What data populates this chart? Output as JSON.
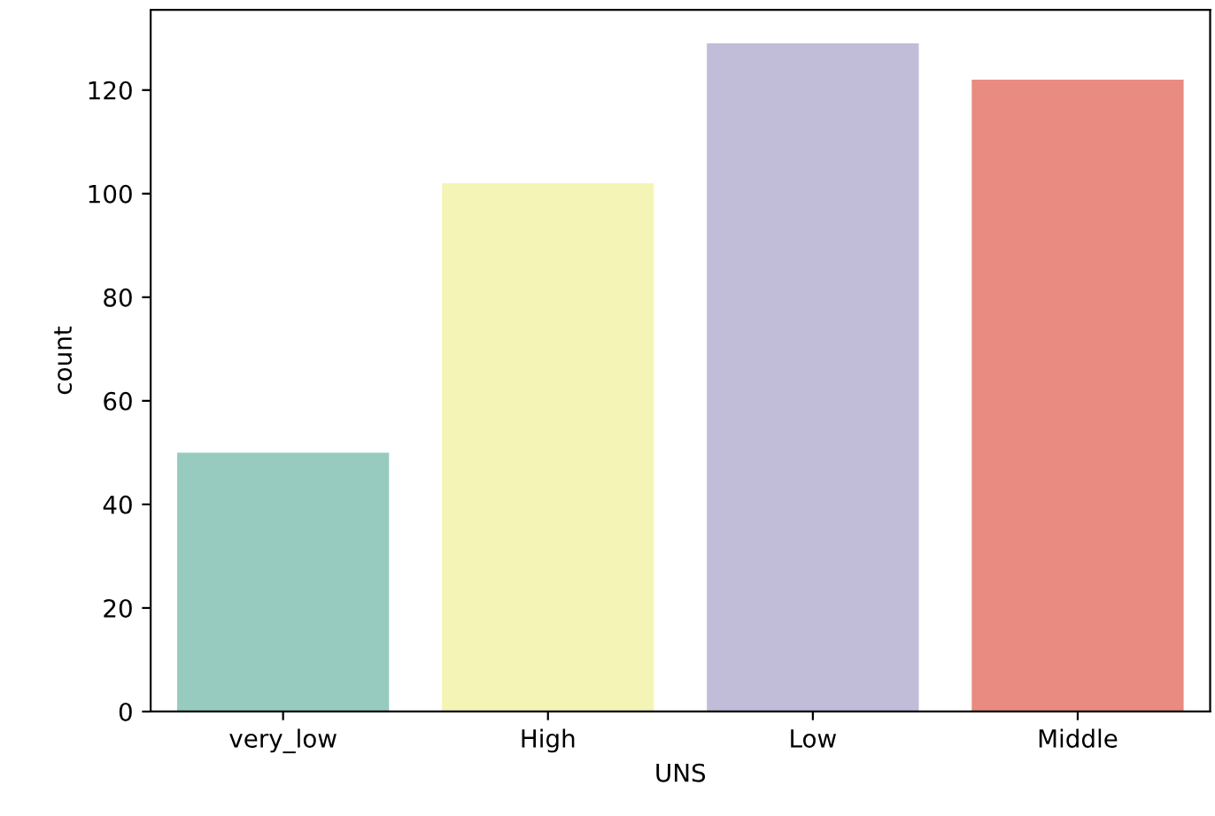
{
  "chart_data": {
    "type": "bar",
    "xlabel": "UNS",
    "ylabel": "count",
    "categories": [
      "very_low",
      "High",
      "Low",
      "Middle"
    ],
    "values": [
      50,
      102,
      129,
      122
    ],
    "colors": [
      "#97cbc0",
      "#f5f4b7",
      "#c1bcd8",
      "#e98b80"
    ],
    "ylim": [
      0,
      135.5
    ],
    "yticks": [
      0,
      20,
      40,
      60,
      80,
      100,
      120
    ],
    "grid": false,
    "legend": false
  }
}
